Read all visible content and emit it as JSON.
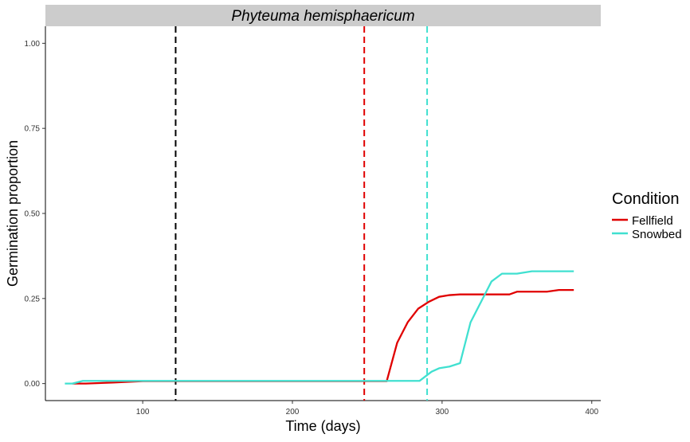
{
  "chart_data": {
    "type": "line",
    "title": "Phyteuma hemisphaericum",
    "xlabel": "Time (days)",
    "ylabel": "Germination proportion",
    "xlim": [
      35,
      406
    ],
    "ylim": [
      -0.05,
      1.05
    ],
    "xticks": [
      100,
      200,
      300,
      400
    ],
    "yticks": [
      0.0,
      0.25,
      0.5,
      0.75,
      1.0
    ],
    "ytick_labels": [
      "0.00",
      "0.25",
      "0.50",
      "0.75",
      "1.00"
    ],
    "grid": false,
    "legend": {
      "title": "Condition",
      "position": "right",
      "entries": [
        "Fellfield",
        "Snowbed"
      ]
    },
    "series": [
      {
        "name": "Fellfield",
        "color": "#e00000",
        "x": [
          53,
          62,
          80,
          100,
          200,
          263,
          270,
          277,
          284,
          291,
          298,
          305,
          312,
          340,
          345,
          350,
          360,
          370,
          378,
          388
        ],
        "y": [
          0,
          0,
          0.003,
          0.007,
          0.007,
          0.007,
          0.12,
          0.18,
          0.22,
          0.24,
          0.255,
          0.26,
          0.262,
          0.262,
          0.262,
          0.27,
          0.27,
          0.27,
          0.275,
          0.275
        ]
      },
      {
        "name": "Snowbed",
        "color": "#40e0d0",
        "x": [
          48,
          53,
          60,
          100,
          200,
          250,
          285,
          290,
          293,
          298,
          305,
          312,
          319,
          326,
          333,
          340,
          350,
          360,
          370,
          388
        ],
        "y": [
          0,
          0,
          0.008,
          0.008,
          0.008,
          0.008,
          0.008,
          0.025,
          0.035,
          0.045,
          0.05,
          0.06,
          0.18,
          0.24,
          0.3,
          0.323,
          0.323,
          0.33,
          0.33,
          0.33
        ]
      }
    ],
    "vlines": [
      {
        "x": 122,
        "color": "#000000"
      },
      {
        "x": 248,
        "color": "#e00000"
      },
      {
        "x": 290,
        "color": "#40e0d0"
      }
    ]
  }
}
